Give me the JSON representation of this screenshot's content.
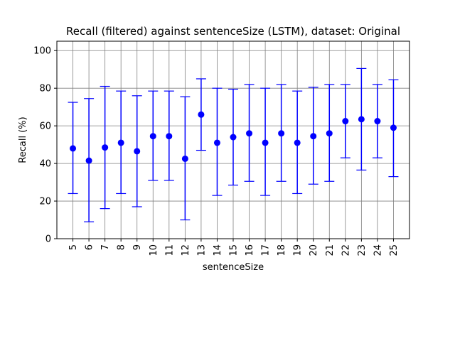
{
  "chart_data": {
    "type": "scatter",
    "title": "Recall (filtered) against sentenceSize (LSTM), dataset: Original",
    "xlabel": "sentenceSize",
    "ylabel": "Recall (%)",
    "ylim": [
      0,
      105
    ],
    "yticks": [
      0,
      20,
      40,
      60,
      80,
      100
    ],
    "grid": true,
    "color": "#0000ff",
    "x": [
      5,
      6,
      7,
      8,
      9,
      10,
      11,
      12,
      13,
      14,
      15,
      16,
      17,
      18,
      19,
      20,
      21,
      22,
      23,
      24,
      25
    ],
    "series": [
      {
        "mean": [
          48,
          41.5,
          48.5,
          51,
          46.5,
          54.5,
          54.5,
          42.5,
          66,
          51,
          54,
          56,
          51,
          56,
          51,
          54.5,
          56,
          62.5,
          63.5,
          62.5,
          59
        ],
        "lower": [
          24,
          9,
          16,
          24,
          17,
          31,
          31,
          10,
          47,
          23,
          28.5,
          30.5,
          23,
          30.5,
          24,
          29,
          30.5,
          43,
          36.5,
          43,
          33
        ],
        "upper": [
          72.5,
          74.5,
          81,
          78.5,
          76,
          78.5,
          78.5,
          75.5,
          85,
          80,
          79.5,
          82,
          80,
          82,
          78.5,
          80.5,
          82,
          82,
          90.5,
          82,
          84.5
        ]
      }
    ]
  }
}
